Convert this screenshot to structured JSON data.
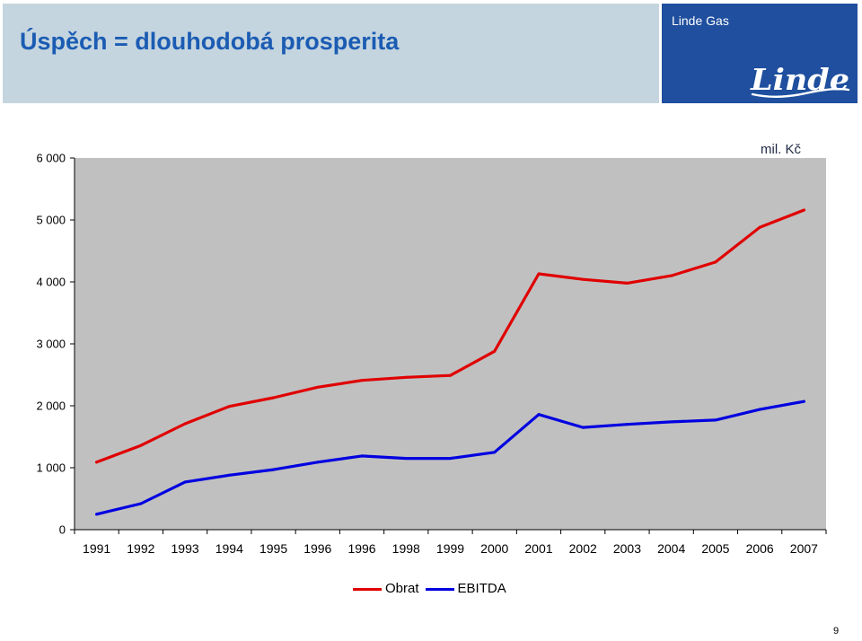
{
  "header": {
    "title": "Úspěch = dlouhodobá prosperita",
    "brand_label": "Linde Gas",
    "logo_text": "Linde"
  },
  "colors": {
    "header_band": "#c5d5df",
    "title": "#1b5cb3",
    "brand_box": "#1f4f9e",
    "brand_text": "#ffffff",
    "plot_background": "#c0c0c0"
  },
  "chart_data": {
    "type": "line",
    "categories": [
      "1991",
      "1992",
      "1993",
      "1994",
      "1995",
      "1996",
      "1996",
      "1998",
      "1999",
      "2000",
      "2001",
      "2002",
      "2003",
      "2004",
      "2005",
      "2006",
      "2007"
    ],
    "series": [
      {
        "name": "Obrat",
        "color": "#e00000",
        "values": [
          1090,
          1360,
          1710,
          1990,
          2130,
          2300,
          2410,
          2460,
          2490,
          2880,
          4130,
          4040,
          3980,
          4100,
          4320,
          4880,
          5160
        ]
      },
      {
        "name": "EBITDA",
        "color": "#0000e0",
        "values": [
          250,
          420,
          770,
          880,
          970,
          1090,
          1190,
          1150,
          1150,
          1250,
          1860,
          1650,
          1700,
          1740,
          1770,
          1940,
          2070
        ]
      }
    ],
    "ylim": [
      0,
      6000
    ],
    "yticks": [
      {
        "value": 6000,
        "label": "6 000"
      },
      {
        "value": 5000,
        "label": "5 000"
      },
      {
        "value": 4000,
        "label": "4 000"
      },
      {
        "value": 3000,
        "label": "3 000"
      },
      {
        "value": 2000,
        "label": "2 000"
      },
      {
        "value": 1000,
        "label": "1 000"
      },
      {
        "value": 0,
        "label": "0"
      }
    ],
    "unit_label": "mil. Kč",
    "grid": false,
    "legend_position": "bottom"
  },
  "page_number": "9"
}
